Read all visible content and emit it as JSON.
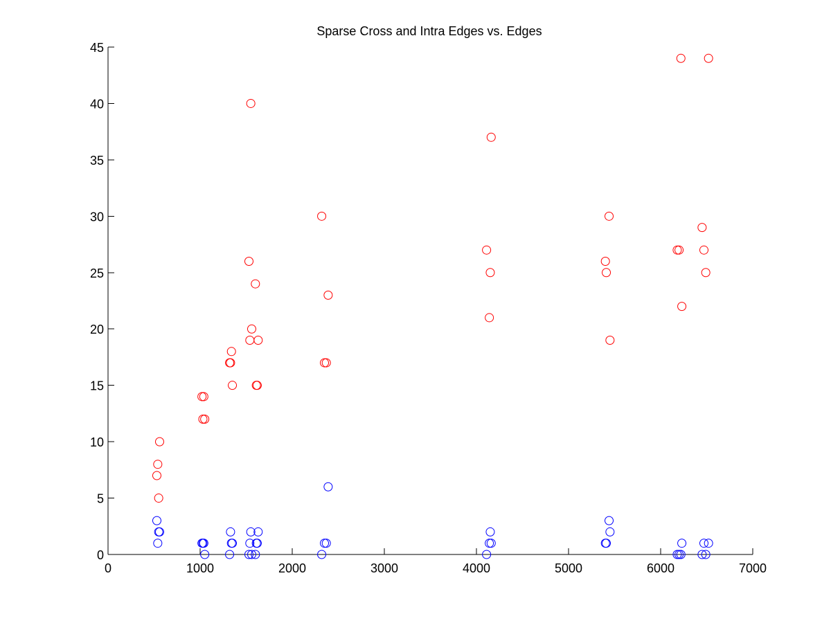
{
  "chart_data": {
    "type": "scatter",
    "title": "Sparse Cross and Intra Edges vs. Edges",
    "xlabel": "",
    "ylabel": "",
    "xlim": [
      0,
      7000
    ],
    "ylim": [
      0,
      45
    ],
    "xticks": [
      "0",
      "1000",
      "2000",
      "3000",
      "4000",
      "5000",
      "6000",
      "7000"
    ],
    "yticks": [
      "0",
      "5",
      "10",
      "15",
      "20",
      "25",
      "30",
      "35",
      "40",
      "45"
    ],
    "grid": false,
    "legend": "none",
    "marker": "open-circle",
    "series": [
      {
        "color": "#ff0000",
        "points": [
          [
            530,
            7
          ],
          [
            540,
            8
          ],
          [
            550,
            5
          ],
          [
            560,
            10
          ],
          [
            1020,
            14
          ],
          [
            1030,
            12
          ],
          [
            1040,
            14
          ],
          [
            1050,
            12
          ],
          [
            1320,
            17
          ],
          [
            1330,
            17
          ],
          [
            1340,
            18
          ],
          [
            1350,
            15
          ],
          [
            1530,
            26
          ],
          [
            1540,
            19
          ],
          [
            1550,
            40
          ],
          [
            1560,
            20
          ],
          [
            1600,
            24
          ],
          [
            1610,
            15
          ],
          [
            1620,
            15
          ],
          [
            1630,
            19
          ],
          [
            2320,
            30
          ],
          [
            2350,
            17
          ],
          [
            2370,
            17
          ],
          [
            2390,
            23
          ],
          [
            4110,
            27
          ],
          [
            4140,
            21
          ],
          [
            4150,
            25
          ],
          [
            4160,
            37
          ],
          [
            5400,
            26
          ],
          [
            5410,
            25
          ],
          [
            5440,
            30
          ],
          [
            5450,
            19
          ],
          [
            6180,
            27
          ],
          [
            6200,
            27
          ],
          [
            6220,
            44
          ],
          [
            6230,
            22
          ],
          [
            6450,
            29
          ],
          [
            6470,
            27
          ],
          [
            6490,
            25
          ],
          [
            6520,
            44
          ]
        ]
      },
      {
        "color": "#0000ff",
        "points": [
          [
            530,
            3
          ],
          [
            540,
            1
          ],
          [
            550,
            2
          ],
          [
            560,
            2
          ],
          [
            1020,
            1
          ],
          [
            1030,
            1
          ],
          [
            1040,
            1
          ],
          [
            1050,
            0
          ],
          [
            1320,
            0
          ],
          [
            1330,
            2
          ],
          [
            1340,
            1
          ],
          [
            1350,
            1
          ],
          [
            1530,
            0
          ],
          [
            1540,
            1
          ],
          [
            1550,
            2
          ],
          [
            1560,
            0
          ],
          [
            1600,
            0
          ],
          [
            1610,
            1
          ],
          [
            1620,
            1
          ],
          [
            1630,
            2
          ],
          [
            2320,
            0
          ],
          [
            2350,
            1
          ],
          [
            2370,
            1
          ],
          [
            2390,
            6
          ],
          [
            4110,
            0
          ],
          [
            4140,
            1
          ],
          [
            4150,
            2
          ],
          [
            4160,
            1
          ],
          [
            5400,
            1
          ],
          [
            5410,
            1
          ],
          [
            5440,
            3
          ],
          [
            5450,
            2
          ],
          [
            6180,
            0
          ],
          [
            6200,
            0
          ],
          [
            6220,
            0
          ],
          [
            6230,
            1
          ],
          [
            6450,
            0
          ],
          [
            6470,
            1
          ],
          [
            6490,
            0
          ],
          [
            6520,
            1
          ]
        ]
      }
    ]
  }
}
